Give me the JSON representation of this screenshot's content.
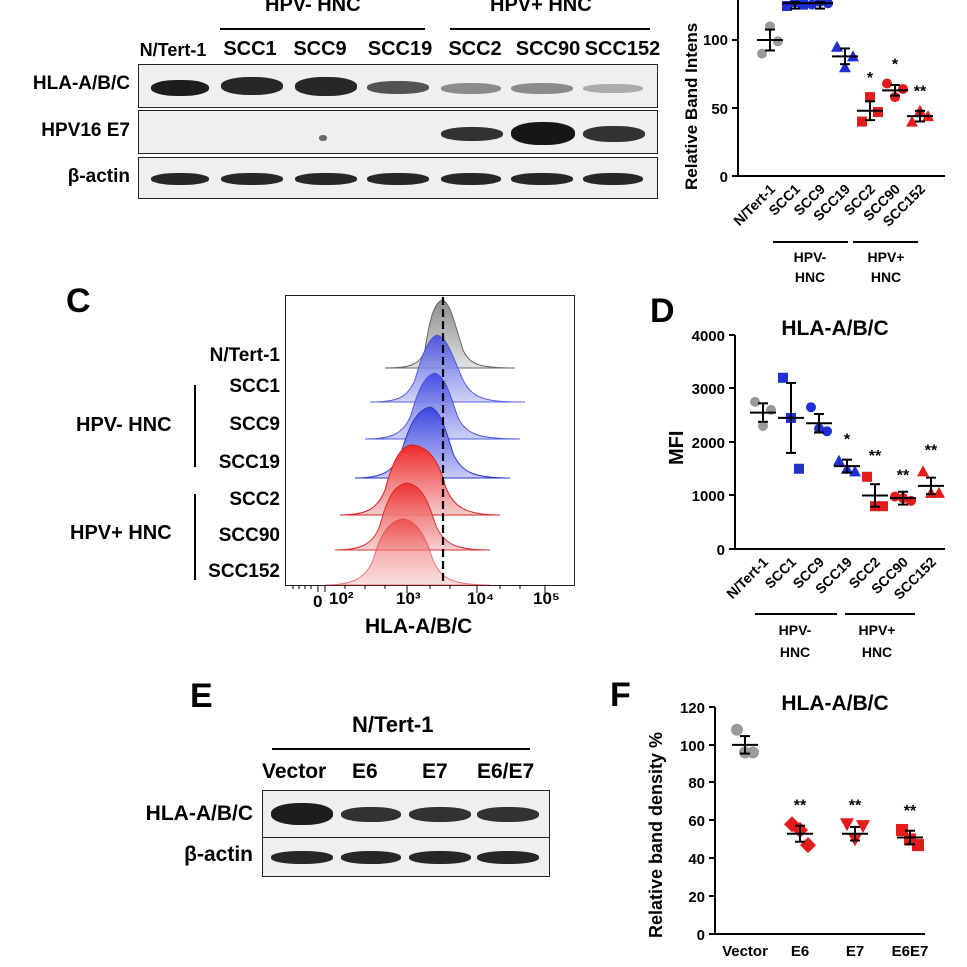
{
  "panel_a": {
    "group_headers": [
      "HPV- HNC",
      "HPV+ HNC"
    ],
    "lanes": [
      "N/Tert-1",
      "SCC1",
      "SCC9",
      "SCC19",
      "SCC2",
      "SCC90",
      "SCC152"
    ],
    "rows": [
      "HLA-A/B/C",
      "HPV16 E7",
      "β-actin"
    ]
  },
  "panel_b": {
    "ylabel": "Relative Band Intens",
    "yticks": [
      "50",
      "100"
    ],
    "tick_zero": "0",
    "groups": [
      {
        "label": "HPV-\nHNC"
      },
      {
        "label": "HPV+\nHNC"
      }
    ]
  },
  "panel_c": {
    "letter": "C",
    "samples": [
      "N/Tert-1",
      "SCC1",
      "SCC9",
      "SCC19",
      "SCC2",
      "SCC90",
      "SCC152"
    ],
    "group_labels": [
      "HPV- HNC",
      "HPV+ HNC"
    ],
    "xticks": [
      "0",
      "10²",
      "10³",
      "10⁴",
      "10⁵"
    ],
    "xlabel": "HLA-A/B/C"
  },
  "panel_d": {
    "letter": "D",
    "title": "HLA-A/B/C",
    "ylabel": "MFI",
    "yticks": [
      "0",
      "1000",
      "2000",
      "3000",
      "4000"
    ],
    "groups": [
      "HPV-\nHNC",
      "HPV+\nHNC"
    ]
  },
  "panel_e": {
    "letter": "E",
    "header": "N/Tert-1",
    "lanes": [
      "Vector",
      "E6",
      "E7",
      "E6/E7"
    ],
    "rows": [
      "HLA-A/B/C",
      "β-actin"
    ]
  },
  "panel_f": {
    "letter": "F",
    "title": "HLA-A/B/C",
    "ylabel": "Relative band density %",
    "yticks": [
      "0",
      "20",
      "40",
      "60",
      "80",
      "100",
      "120"
    ]
  },
  "chart_data": [
    {
      "type": "scatter",
      "panel": "B",
      "ylabel": "Relative Band Intens",
      "categories": [
        "N/Tert-1",
        "SCC1",
        "SCC9",
        "SCC19",
        "SCC2",
        "SCC90",
        "SCC152"
      ],
      "points": [
        [
          90,
          110,
          99
        ],
        [
          125,
          128,
          126
        ],
        [
          126,
          128,
          127
        ],
        [
          95,
          80,
          88
        ],
        [
          40,
          58,
          47
        ],
        [
          68,
          58,
          64
        ],
        [
          40,
          48,
          44
        ]
      ],
      "means": [
        100,
        127,
        127,
        88,
        48,
        63,
        44
      ],
      "significance": [
        "",
        "",
        "",
        "",
        "*",
        "*",
        "**"
      ],
      "colors": [
        "#9a9a9a",
        "#1f2fd6",
        "#1f2fd6",
        "#1f2fd6",
        "#e21b1b",
        "#e21b1b",
        "#e21b1b"
      ],
      "ylim": [
        0,
        130
      ]
    },
    {
      "type": "scatter",
      "panel": "D",
      "title": "HLA-A/B/C",
      "ylabel": "MFI",
      "categories": [
        "N/Tert-1",
        "SCC1",
        "SCC9",
        "SCC19",
        "SCC2",
        "SCC90",
        "SCC152"
      ],
      "points": [
        [
          2750,
          2300,
          2600
        ],
        [
          3200,
          2450,
          1500
        ],
        [
          2650,
          2250,
          2200
        ],
        [
          1650,
          1500,
          1450
        ],
        [
          1350,
          800,
          800
        ],
        [
          980,
          950,
          900
        ],
        [
          1450,
          1050,
          1050
        ]
      ],
      "means": [
        2550,
        2450,
        2350,
        1550,
        1000,
        950,
        1180
      ],
      "significance": [
        "",
        "",
        "",
        "*",
        "**",
        "**",
        "**"
      ],
      "colors": [
        "#9a9a9a",
        "#1f2fd6",
        "#1f2fd6",
        "#1f2fd6",
        "#e21b1b",
        "#e21b1b",
        "#e21b1b"
      ],
      "ylim": [
        0,
        4000
      ]
    },
    {
      "type": "scatter",
      "panel": "F",
      "title": "HLA-A/B/C",
      "ylabel": "Relative band density %",
      "categories": [
        "Vector",
        "E6",
        "E7",
        "E6E7"
      ],
      "points": [
        [
          108,
          96,
          96
        ],
        [
          58,
          55,
          47
        ],
        [
          58,
          50,
          57
        ],
        [
          55,
          50,
          47
        ]
      ],
      "means": [
        100,
        53,
        53,
        51
      ],
      "significance": [
        "",
        "**",
        "**",
        "**"
      ],
      "colors": [
        "#9a9a9a",
        "#e21b1b",
        "#e21b1b",
        "#e21b1b"
      ],
      "ylim": [
        0,
        120
      ]
    }
  ]
}
